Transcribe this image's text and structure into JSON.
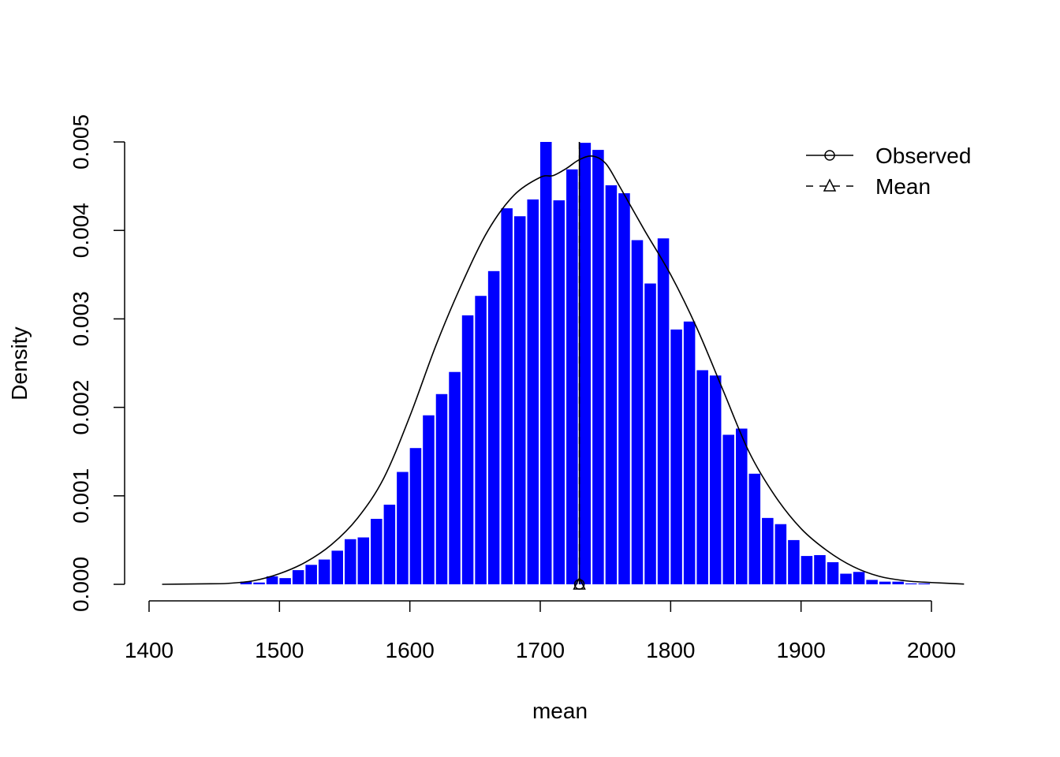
{
  "chart_data": {
    "type": "bar",
    "xlabel": "mean",
    "ylabel": "Density",
    "xlim": [
      1400,
      2000
    ],
    "ylim": [
      0,
      0.005
    ],
    "x_ticks": [
      "1400",
      "1500",
      "1600",
      "1700",
      "1800",
      "1900",
      "2000"
    ],
    "y_ticks": [
      "0.000",
      "0.001",
      "0.002",
      "0.003",
      "0.004",
      "0.005"
    ],
    "bin_width": 10,
    "bin_starts": [
      1470,
      1480,
      1490,
      1500,
      1510,
      1520,
      1530,
      1540,
      1550,
      1560,
      1570,
      1580,
      1590,
      1600,
      1610,
      1620,
      1630,
      1640,
      1650,
      1660,
      1670,
      1680,
      1690,
      1700,
      1710,
      1720,
      1730,
      1740,
      1750,
      1760,
      1770,
      1780,
      1790,
      1800,
      1810,
      1820,
      1830,
      1840,
      1850,
      1860,
      1870,
      1880,
      1890,
      1900,
      1910,
      1920,
      1930,
      1940,
      1950,
      1960,
      1970,
      1980,
      1990
    ],
    "densities": [
      3e-05,
      2e-05,
      9e-05,
      7e-05,
      0.00016,
      0.00022,
      0.00028,
      0.00038,
      0.00051,
      0.00053,
      0.00074,
      0.0009,
      0.00127,
      0.00154,
      0.00191,
      0.00215,
      0.0024,
      0.00304,
      0.00326,
      0.00354,
      0.00425,
      0.00416,
      0.00435,
      0.005,
      0.00434,
      0.00469,
      0.00499,
      0.00491,
      0.00451,
      0.00442,
      0.00389,
      0.0034,
      0.00391,
      0.00288,
      0.00297,
      0.00242,
      0.00236,
      0.00169,
      0.00176,
      0.00125,
      0.00075,
      0.00068,
      0.0005,
      0.00032,
      0.00033,
      0.00025,
      0.00012,
      0.00014,
      5e-05,
      3e-05,
      3e-05,
      1e-05,
      1e-05
    ],
    "bar_color": "#0000ff",
    "density_curve": {
      "x": [
        1410,
        1440,
        1460,
        1480,
        1500,
        1520,
        1540,
        1560,
        1580,
        1600,
        1620,
        1640,
        1660,
        1680,
        1700,
        1710,
        1720,
        1730,
        1740,
        1750,
        1760,
        1780,
        1800,
        1820,
        1840,
        1860,
        1880,
        1900,
        1920,
        1940,
        1960,
        1980,
        2000,
        2025
      ],
      "y": [
        0,
        5e-06,
        1e-05,
        4e-05,
        0.00012,
        0.00025,
        0.00045,
        0.00075,
        0.0012,
        0.0019,
        0.0027,
        0.0034,
        0.004,
        0.0044,
        0.0046,
        0.00462,
        0.0047,
        0.0048,
        0.00484,
        0.00476,
        0.00452,
        0.004,
        0.0035,
        0.0029,
        0.0022,
        0.0015,
        0.001,
        0.00063,
        0.00038,
        0.0002,
        9e-05,
        4e-05,
        2e-05,
        3e-06
      ]
    },
    "observed": 1730,
    "mean": 1730,
    "legend": {
      "position": "top-right",
      "entries": [
        {
          "label": "Observed",
          "marker": "circle",
          "line": "solid"
        },
        {
          "label": "Mean",
          "marker": "triangle",
          "line": "dashed"
        }
      ]
    }
  }
}
